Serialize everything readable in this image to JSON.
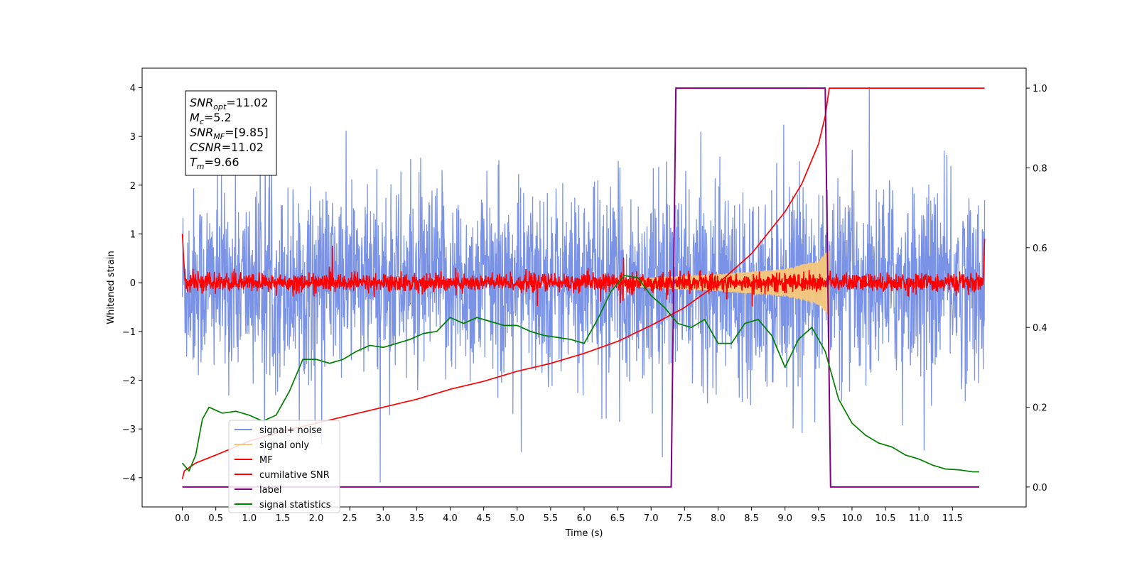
{
  "chart_data": {
    "type": "line",
    "xlabel": "Time (s)",
    "ylabel": "Whitened strain",
    "xlim": [
      -0.6,
      12.6
    ],
    "ylim": [
      -4.6,
      4.4
    ],
    "ylim_right": [
      -0.05,
      1.05
    ],
    "x_ticks": [
      0.0,
      0.5,
      1.0,
      1.5,
      2.0,
      2.5,
      3.0,
      3.5,
      4.0,
      4.5,
      5.0,
      5.5,
      6.0,
      6.5,
      7.0,
      7.5,
      8.0,
      8.5,
      9.0,
      9.5,
      10.0,
      10.5,
      11.0,
      11.5
    ],
    "x_tick_labels": [
      "0.0",
      "0.5",
      "1.0",
      "1.5",
      "2.0",
      "2.5",
      "3.0",
      "3.5",
      "4.0",
      "4.5",
      "5.0",
      "5.5",
      "6.0",
      "6.5",
      "7.0",
      "7.5",
      "8.0",
      "8.5",
      "9.0",
      "9.5",
      "10.0",
      "10.5",
      "11.0",
      "11.5"
    ],
    "y_ticks": [
      -4,
      -3,
      -2,
      -1,
      0,
      1,
      2,
      3,
      4
    ],
    "y_tick_labels": [
      "−4",
      "−3",
      "−2",
      "−1",
      "0",
      "1",
      "2",
      "3",
      "4"
    ],
    "y_right_ticks": [
      0.0,
      0.2,
      0.4,
      0.6,
      0.8,
      1.0
    ],
    "y_right_tick_labels": [
      "0.0",
      "0.2",
      "0.4",
      "0.6",
      "0.8",
      "1.0"
    ],
    "grid": false,
    "legend_position": "lower-left",
    "annotation": {
      "lines": [
        {
          "sym": "SNR",
          "sub": "opt",
          "rest": "=11.02"
        },
        {
          "sym": "M",
          "sub": "c",
          "rest": "=5.2"
        },
        {
          "sym": "SNR",
          "sub": "MF",
          "rest": "=[9.85]"
        },
        {
          "sym": "CSNR",
          "sub": "",
          "rest": "=11.02"
        },
        {
          "sym": "T",
          "sub": "m",
          "rest": "=9.66"
        }
      ]
    },
    "series": [
      {
        "name": "signal+ noise",
        "color": "#7b93e6",
        "axis": "left",
        "kind": "noise",
        "x_range": [
          0.0,
          11.98
        ],
        "typical_amplitude": 1.0,
        "max": 4.0,
        "min": -4.15
      },
      {
        "name": "signal only",
        "color": "#f7c77a",
        "axis": "left",
        "kind": "chirp",
        "x_range": [
          6.5,
          9.66
        ],
        "envelope": [
          [
            6.5,
            0.05
          ],
          [
            7.0,
            0.1
          ],
          [
            8.0,
            0.17
          ],
          [
            9.0,
            0.28
          ],
          [
            9.5,
            0.45
          ],
          [
            9.66,
            0.7
          ]
        ]
      },
      {
        "name": "MF",
        "color": "#ff0000",
        "axis": "left",
        "kind": "noise",
        "x_range": [
          0.0,
          11.98
        ],
        "typical_amplitude": 0.09
      },
      {
        "name": "cumilative SNR",
        "color": "#ff0000",
        "axis": "right",
        "x": [
          0.0,
          0.03,
          0.2,
          0.5,
          1.0,
          1.5,
          2.0,
          2.5,
          3.0,
          3.5,
          4.0,
          4.5,
          5.0,
          5.5,
          6.0,
          6.5,
          7.0,
          7.5,
          8.0,
          8.5,
          9.0,
          9.25,
          9.5,
          9.6,
          9.66,
          9.75,
          11.98
        ],
        "y": [
          0.02,
          0.04,
          0.06,
          0.08,
          0.115,
          0.14,
          0.16,
          0.18,
          0.2,
          0.22,
          0.245,
          0.265,
          0.29,
          0.31,
          0.335,
          0.365,
          0.405,
          0.45,
          0.51,
          0.585,
          0.69,
          0.76,
          0.86,
          0.93,
          1.0,
          1.0,
          1.0
        ]
      },
      {
        "name": "label",
        "color": "#800080",
        "axis": "right",
        "x": [
          0.0,
          7.3,
          7.37,
          9.6,
          9.68,
          11.9
        ],
        "y": [
          0.0,
          0.0,
          1.0,
          1.0,
          0.0,
          0.0
        ]
      },
      {
        "name": "signal statistics",
        "color": "#008000",
        "axis": "right",
        "x": [
          0.0,
          0.1,
          0.2,
          0.3,
          0.4,
          0.6,
          0.8,
          1.0,
          1.2,
          1.4,
          1.6,
          1.8,
          2.0,
          2.2,
          2.4,
          2.6,
          2.8,
          3.0,
          3.2,
          3.4,
          3.6,
          3.8,
          4.0,
          4.2,
          4.4,
          4.6,
          4.8,
          5.0,
          5.2,
          5.4,
          5.6,
          5.8,
          6.0,
          6.2,
          6.4,
          6.6,
          6.8,
          7.0,
          7.2,
          7.4,
          7.6,
          7.8,
          8.0,
          8.2,
          8.4,
          8.6,
          8.8,
          9.0,
          9.2,
          9.4,
          9.6,
          9.8,
          10.0,
          10.2,
          10.4,
          10.6,
          10.8,
          11.0,
          11.2,
          11.4,
          11.6,
          11.8,
          11.9
        ],
        "y": [
          0.06,
          0.04,
          0.08,
          0.17,
          0.2,
          0.185,
          0.19,
          0.18,
          0.165,
          0.18,
          0.24,
          0.32,
          0.32,
          0.31,
          0.32,
          0.34,
          0.355,
          0.35,
          0.36,
          0.37,
          0.385,
          0.39,
          0.425,
          0.41,
          0.425,
          0.415,
          0.405,
          0.405,
          0.39,
          0.38,
          0.375,
          0.37,
          0.36,
          0.42,
          0.49,
          0.53,
          0.525,
          0.48,
          0.45,
          0.41,
          0.4,
          0.42,
          0.36,
          0.36,
          0.41,
          0.42,
          0.38,
          0.3,
          0.37,
          0.4,
          0.34,
          0.22,
          0.16,
          0.13,
          0.11,
          0.1,
          0.08,
          0.07,
          0.055,
          0.045,
          0.043,
          0.038,
          0.038
        ]
      }
    ]
  }
}
